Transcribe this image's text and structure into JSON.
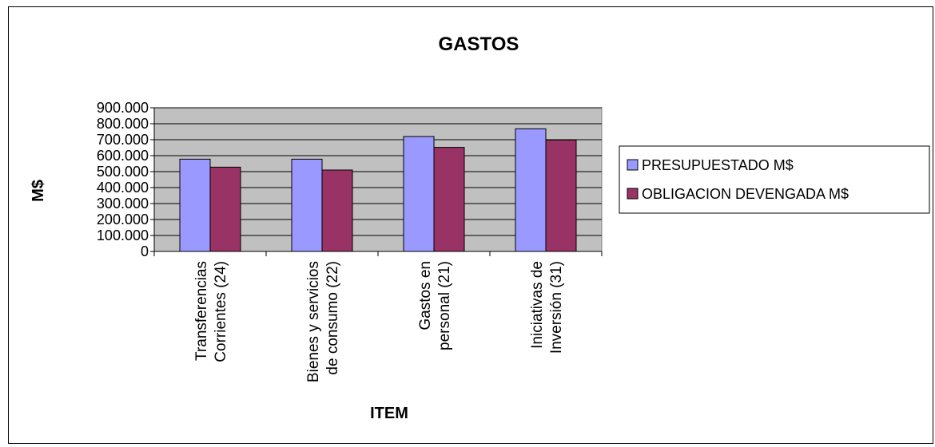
{
  "chart_data": {
    "type": "bar",
    "title": "GASTOS",
    "xlabel": "ITEM",
    "ylabel": "M$",
    "ylim": [
      0,
      900000
    ],
    "yticks": [
      "0",
      "100.000",
      "200.000",
      "300.000",
      "400.000",
      "500.000",
      "600.000",
      "700.000",
      "800.000",
      "900.000"
    ],
    "categories": [
      [
        "Transferencias",
        "Corrientes (24)"
      ],
      [
        "Bienes y servicios",
        "de consumo (22)"
      ],
      [
        "Gastos en",
        "personal (21)"
      ],
      [
        "Iniciativas de",
        "Inversión (31)"
      ]
    ],
    "series": [
      {
        "name": "PRESUPUESTADO M$",
        "color": "#9999ff",
        "values": [
          578000,
          578000,
          720000,
          768000
        ]
      },
      {
        "name": "OBLIGACION DEVENGADA M$",
        "color": "#993366",
        "values": [
          528000,
          510000,
          652000,
          698000
        ]
      }
    ],
    "grid": true,
    "plot_background": "#c0c0c0",
    "legend_position": "right"
  }
}
